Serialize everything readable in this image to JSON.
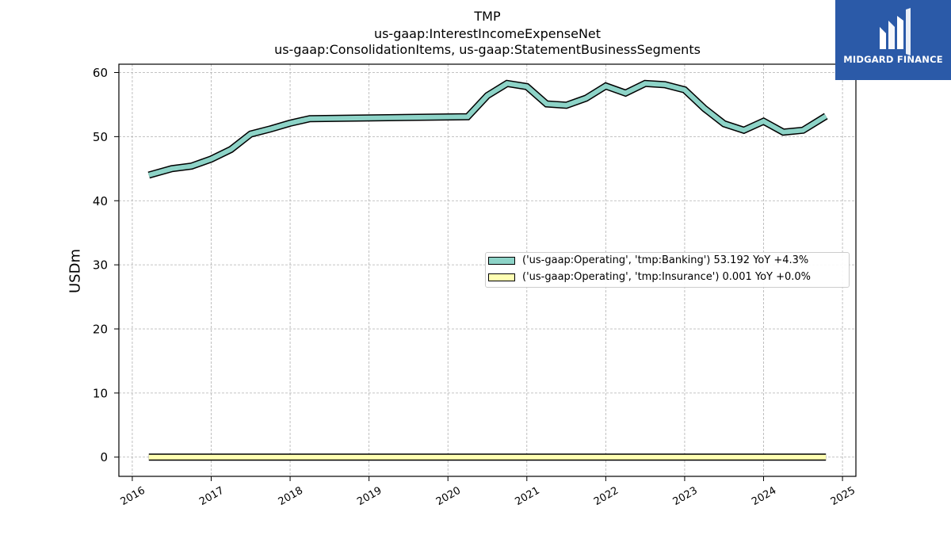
{
  "header": {
    "title_line1": "TMP",
    "title_line2": "us-gaap:InterestIncomeExpenseNet",
    "title_line3": "us-gaap:ConsolidationItems, us-gaap:StatementBusinessSegments"
  },
  "logo": {
    "text": "MIDGARD FINANCE",
    "background": "#2b5aa8"
  },
  "chart_data": {
    "type": "line",
    "title": "TMP",
    "subtitle": "us-gaap:InterestIncomeExpenseNet / us-gaap:ConsolidationItems, us-gaap:StatementBusinessSegments",
    "xlabel": "",
    "ylabel": "USDm",
    "xlim": [
      2015.83,
      2025.17
    ],
    "ylim": [
      -3,
      61.3
    ],
    "x_ticks": [
      "2016",
      "2017",
      "2018",
      "2019",
      "2020",
      "2021",
      "2022",
      "2023",
      "2024",
      "2025"
    ],
    "y_ticks": [
      "0",
      "10",
      "20",
      "30",
      "40",
      "50",
      "60"
    ],
    "grid": true,
    "legend_position": "center-right",
    "series": [
      {
        "name": "('us-gaap:Operating', 'tmp:Banking') 53.192 YoY +4.3%",
        "color": "#8dd3c7",
        "x": [
          2016.21,
          2016.5,
          2016.75,
          2017.0,
          2017.25,
          2017.5,
          2017.75,
          2018.0,
          2018.25,
          2020.25,
          2020.5,
          2020.75,
          2021.0,
          2021.25,
          2021.5,
          2021.75,
          2022.0,
          2022.25,
          2022.5,
          2022.75,
          2023.0,
          2023.25,
          2023.5,
          2023.75,
          2024.0,
          2024.25,
          2024.5,
          2024.79
        ],
        "y": [
          44.0,
          45.0,
          45.4,
          46.5,
          48.0,
          50.4,
          51.2,
          52.1,
          52.8,
          53.1,
          56.4,
          58.3,
          57.8,
          55.1,
          54.9,
          56.0,
          57.9,
          56.8,
          58.3,
          58.1,
          57.3,
          54.4,
          52.0,
          51.0,
          52.4,
          50.7,
          51.0,
          53.2
        ]
      },
      {
        "name": "('us-gaap:Operating', 'tmp:Insurance') 0.001 YoY +0.0%",
        "color": "#ffffb3",
        "x": [
          2016.21,
          2024.79
        ],
        "y": [
          0.001,
          0.001
        ]
      }
    ]
  }
}
